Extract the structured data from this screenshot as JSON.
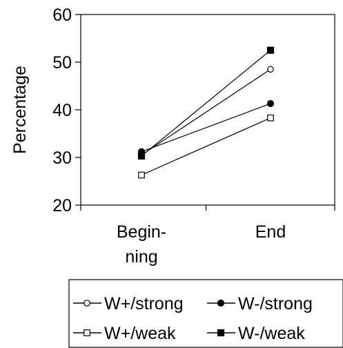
{
  "chart_data": {
    "type": "line",
    "categories": [
      "Begin-\nning",
      "End"
    ],
    "ylabel": "Percentage",
    "ylim": [
      20,
      60
    ],
    "yticks": [
      20,
      30,
      40,
      50,
      60
    ],
    "grid": false,
    "legend_position": "bottom",
    "series": [
      {
        "name": "W+/strong",
        "marker": "open-circle",
        "values": [
          30.5,
          48.5
        ]
      },
      {
        "name": "W-/strong",
        "marker": "filled-circle",
        "values": [
          31.2,
          41.3
        ]
      },
      {
        "name": "W+/weak",
        "marker": "open-square",
        "values": [
          26.3,
          38.3
        ]
      },
      {
        "name": "W-/weak",
        "marker": "filled-square",
        "values": [
          30.3,
          52.5
        ]
      }
    ]
  }
}
